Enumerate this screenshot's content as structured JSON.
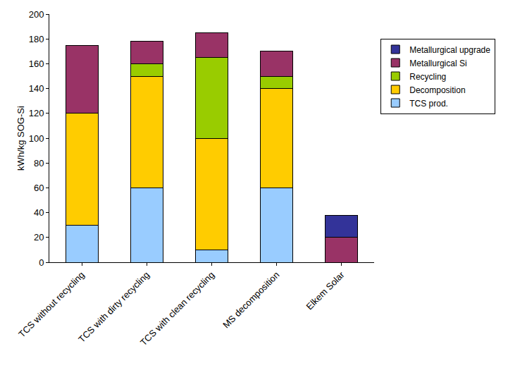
{
  "chart_data": {
    "type": "bar",
    "stacked": true,
    "y_label": "kWh/kg SOG-Si",
    "categories": [
      "TCS without recycling",
      "TCS with dirty recycling",
      "TCS with clean recycling",
      "MS decomposition",
      "Elkem Solar"
    ],
    "series": [
      {
        "name": "TCS prod.",
        "color": "#99ccff",
        "values": [
          30,
          60,
          10,
          60,
          0
        ]
      },
      {
        "name": "Decomposition",
        "color": "#ffcc00",
        "values": [
          90,
          90,
          90,
          80,
          0
        ]
      },
      {
        "name": "Recycling",
        "color": "#99cc00",
        "values": [
          0,
          10,
          65,
          10,
          0
        ]
      },
      {
        "name": "Metallurgical Si",
        "color": "#993366",
        "values": [
          55,
          18,
          20,
          20,
          20
        ]
      },
      {
        "name": "Metallurgical upgrade",
        "color": "#333399",
        "values": [
          0,
          0,
          0,
          0,
          18
        ]
      }
    ],
    "ylim": [
      0,
      200
    ],
    "yticks": [
      0,
      20,
      40,
      60,
      80,
      100,
      120,
      140,
      160,
      180,
      200
    ],
    "grid": false,
    "legend": "right"
  }
}
